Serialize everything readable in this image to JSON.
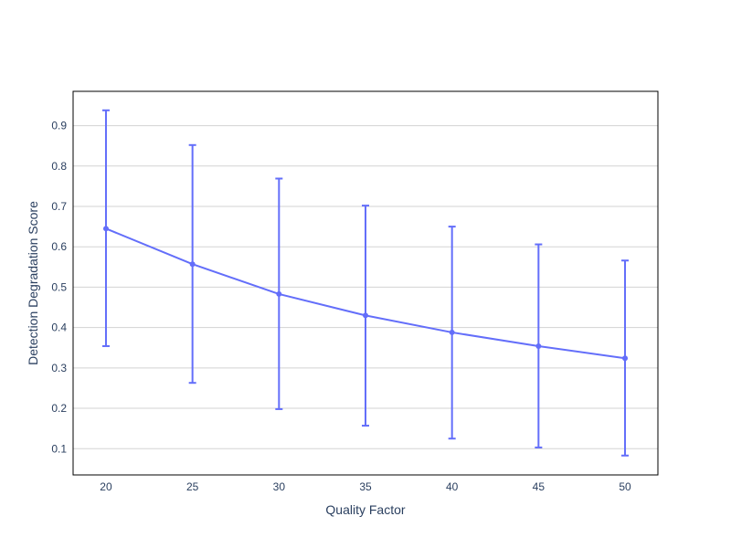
{
  "chart_data": {
    "type": "line",
    "title": "",
    "xlabel": "Quality Factor",
    "ylabel": "Detection Degradation Score",
    "x": [
      20,
      25,
      30,
      35,
      40,
      45,
      50
    ],
    "xlim": [
      18.1,
      51.9
    ],
    "ylim": [
      0.035,
      0.985
    ],
    "xticks": [
      20,
      25,
      30,
      35,
      40,
      45,
      50
    ],
    "yticks": [
      0.1,
      0.2,
      0.3,
      0.4,
      0.5,
      0.6,
      0.7,
      0.8,
      0.9
    ],
    "grid": "horizontal",
    "series": [
      {
        "name": "",
        "values": [
          0.645,
          0.557,
          0.483,
          0.43,
          0.388,
          0.354,
          0.324
        ],
        "error_upper": [
          0.938,
          0.852,
          0.769,
          0.702,
          0.65,
          0.606,
          0.566
        ],
        "error_lower": [
          0.354,
          0.263,
          0.198,
          0.157,
          0.125,
          0.103,
          0.083
        ],
        "color": "#636efa"
      }
    ]
  }
}
